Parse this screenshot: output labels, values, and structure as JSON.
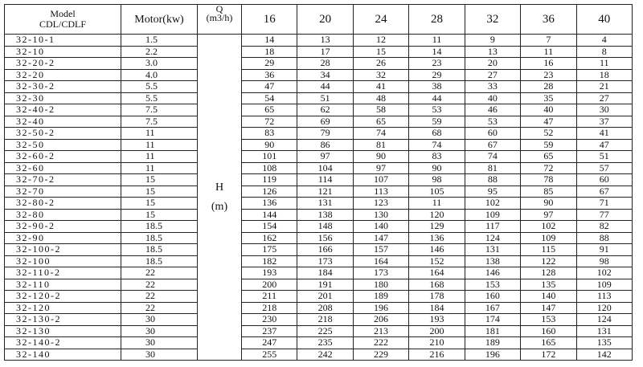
{
  "header": {
    "model": "Model",
    "series": "CDL/CDLF",
    "motor": "Motor(kw)",
    "q": "Q",
    "q_unit": "(m3/h)",
    "flows": [
      16,
      20,
      24,
      28,
      32,
      36,
      40
    ]
  },
  "head_label": {
    "symbol": "H",
    "unit": "(m)"
  },
  "rows": [
    {
      "model": "32-10-1",
      "motor": "1.5",
      "head": [
        14,
        13,
        12,
        11,
        9,
        7,
        4
      ]
    },
    {
      "model": "32-10",
      "motor": "2.2",
      "head": [
        18,
        17,
        15,
        14,
        13,
        11,
        8
      ]
    },
    {
      "model": "32-20-2",
      "motor": "3.0",
      "head": [
        29,
        28,
        26,
        23,
        20,
        16,
        11
      ]
    },
    {
      "model": "32-20",
      "motor": "4.0",
      "head": [
        36,
        34,
        32,
        29,
        27,
        23,
        18
      ]
    },
    {
      "model": "32-30-2",
      "motor": "5.5",
      "head": [
        47,
        44,
        41,
        38,
        33,
        28,
        21
      ]
    },
    {
      "model": "32-30",
      "motor": "5.5",
      "head": [
        54,
        51,
        48,
        44,
        40,
        35,
        27
      ]
    },
    {
      "model": "32-40-2",
      "motor": "7.5",
      "head": [
        65,
        62,
        58,
        53,
        46,
        40,
        30
      ]
    },
    {
      "model": "32-40",
      "motor": "7.5",
      "head": [
        72,
        69,
        65,
        59,
        53,
        47,
        37
      ]
    },
    {
      "model": "32-50-2",
      "motor": "11",
      "head": [
        83,
        79,
        74,
        68,
        60,
        52,
        41
      ]
    },
    {
      "model": "32-50",
      "motor": "11",
      "head": [
        90,
        86,
        81,
        74,
        67,
        59,
        47
      ]
    },
    {
      "model": "32-60-2",
      "motor": "11",
      "head": [
        101,
        97,
        90,
        83,
        74,
        65,
        51
      ]
    },
    {
      "model": "32-60",
      "motor": "11",
      "head": [
        108,
        104,
        97,
        90,
        81,
        72,
        57
      ]
    },
    {
      "model": "32-70-2",
      "motor": "15",
      "head": [
        119,
        114,
        107,
        98,
        88,
        78,
        60
      ]
    },
    {
      "model": "32-70",
      "motor": "15",
      "head": [
        126,
        121,
        113,
        105,
        95,
        85,
        67
      ]
    },
    {
      "model": "32-80-2",
      "motor": "15",
      "head": [
        136,
        131,
        123,
        11,
        102,
        90,
        71
      ]
    },
    {
      "model": "32-80",
      "motor": "15",
      "head": [
        144,
        138,
        130,
        120,
        109,
        97,
        77
      ]
    },
    {
      "model": "32-90-2",
      "motor": "18.5",
      "head": [
        154,
        148,
        140,
        129,
        117,
        102,
        82
      ]
    },
    {
      "model": "32-90",
      "motor": "18.5",
      "head": [
        162,
        156,
        147,
        136,
        124,
        109,
        88
      ]
    },
    {
      "model": "32-100-2",
      "motor": "18.5",
      "head": [
        175,
        166,
        157,
        146,
        131,
        115,
        91
      ]
    },
    {
      "model": "32-100",
      "motor": "18.5",
      "head": [
        182,
        173,
        164,
        152,
        138,
        122,
        98
      ]
    },
    {
      "model": "32-110-2",
      "motor": "22",
      "head": [
        193,
        184,
        173,
        164,
        146,
        128,
        102
      ]
    },
    {
      "model": "32-110",
      "motor": "22",
      "head": [
        200,
        191,
        180,
        168,
        153,
        135,
        109
      ]
    },
    {
      "model": "32-120-2",
      "motor": "22",
      "head": [
        211,
        201,
        189,
        178,
        160,
        140,
        113
      ]
    },
    {
      "model": "32-120",
      "motor": "22",
      "head": [
        218,
        208,
        196,
        184,
        167,
        147,
        120
      ]
    },
    {
      "model": "32-130-2",
      "motor": "30",
      "head": [
        230,
        218,
        206,
        193,
        174,
        153,
        124
      ]
    },
    {
      "model": "32-130",
      "motor": "30",
      "head": [
        237,
        225,
        213,
        200,
        181,
        160,
        131
      ]
    },
    {
      "model": "32-140-2",
      "motor": "30",
      "head": [
        247,
        235,
        222,
        210,
        189,
        165,
        135
      ]
    },
    {
      "model": "32-140",
      "motor": "30",
      "head": [
        255,
        242,
        229,
        216,
        196,
        172,
        142
      ]
    }
  ]
}
